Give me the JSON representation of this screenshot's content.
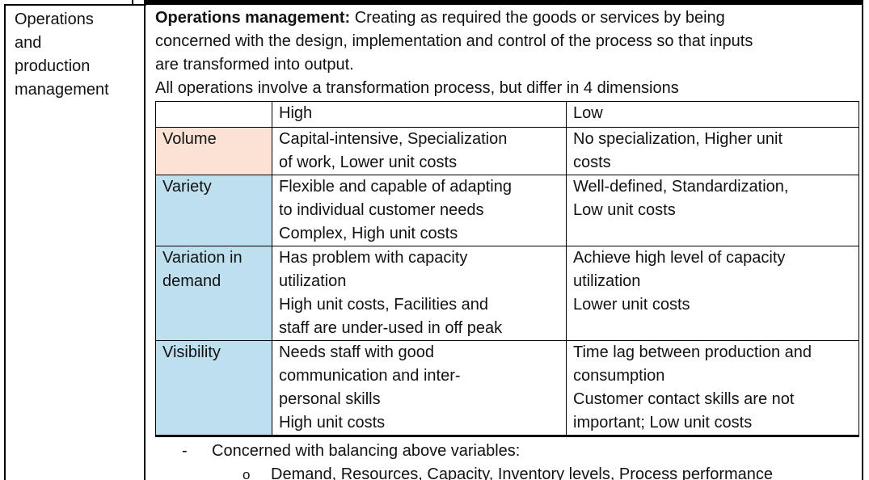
{
  "document": {
    "sidebar_label": "Operations\nand\nproduction\nmanagement",
    "intro_bold": "Operations management:",
    "intro_text": " Creating as required the goods or services by being\nconcerned with the design, implementation and control of the process so that inputs\nare transformed into output.\nAll operations involve a transformation process, but differ in 4 dimensions",
    "table": {
      "header": {
        "col1": "",
        "high": "High",
        "low": "Low"
      },
      "rows": [
        {
          "label": "Volume",
          "high": "Capital-intensive, Specialization\nof work, Lower unit costs",
          "low": "No specialization, Higher unit\ncosts"
        },
        {
          "label": "Variety",
          "high": "Flexible and capable of adapting\nto individual customer needs\nComplex, High unit costs",
          "low": "Well-defined, Standardization,\nLow unit costs"
        },
        {
          "label": "Variation in\ndemand",
          "high": "Has problem with capacity\nutilization\nHigh unit costs, Facilities and\nstaff are under-used in off peak",
          "low": "Achieve high level of capacity\nutilization\nLower unit costs"
        },
        {
          "label": "Visibility",
          "high": "Needs staff with good\ncommunication and inter-\npersonal skills\nHigh unit costs",
          "low": "Time lag between production and\nconsumption\nCustomer contact skills are not\nimportant; Low unit costs"
        }
      ]
    },
    "bullets": {
      "level1_marker": "-",
      "level1_text": "Concerned with balancing above variables:",
      "level2_marker": "o",
      "level2_text": "Demand, Resources, Capacity, Inventory levels, Process performance"
    },
    "colors": {
      "volume_label_bg": "#FBE2D5",
      "dimension_label_bg": "#BDDFEE",
      "border": "#000000",
      "text": "#121212"
    }
  }
}
